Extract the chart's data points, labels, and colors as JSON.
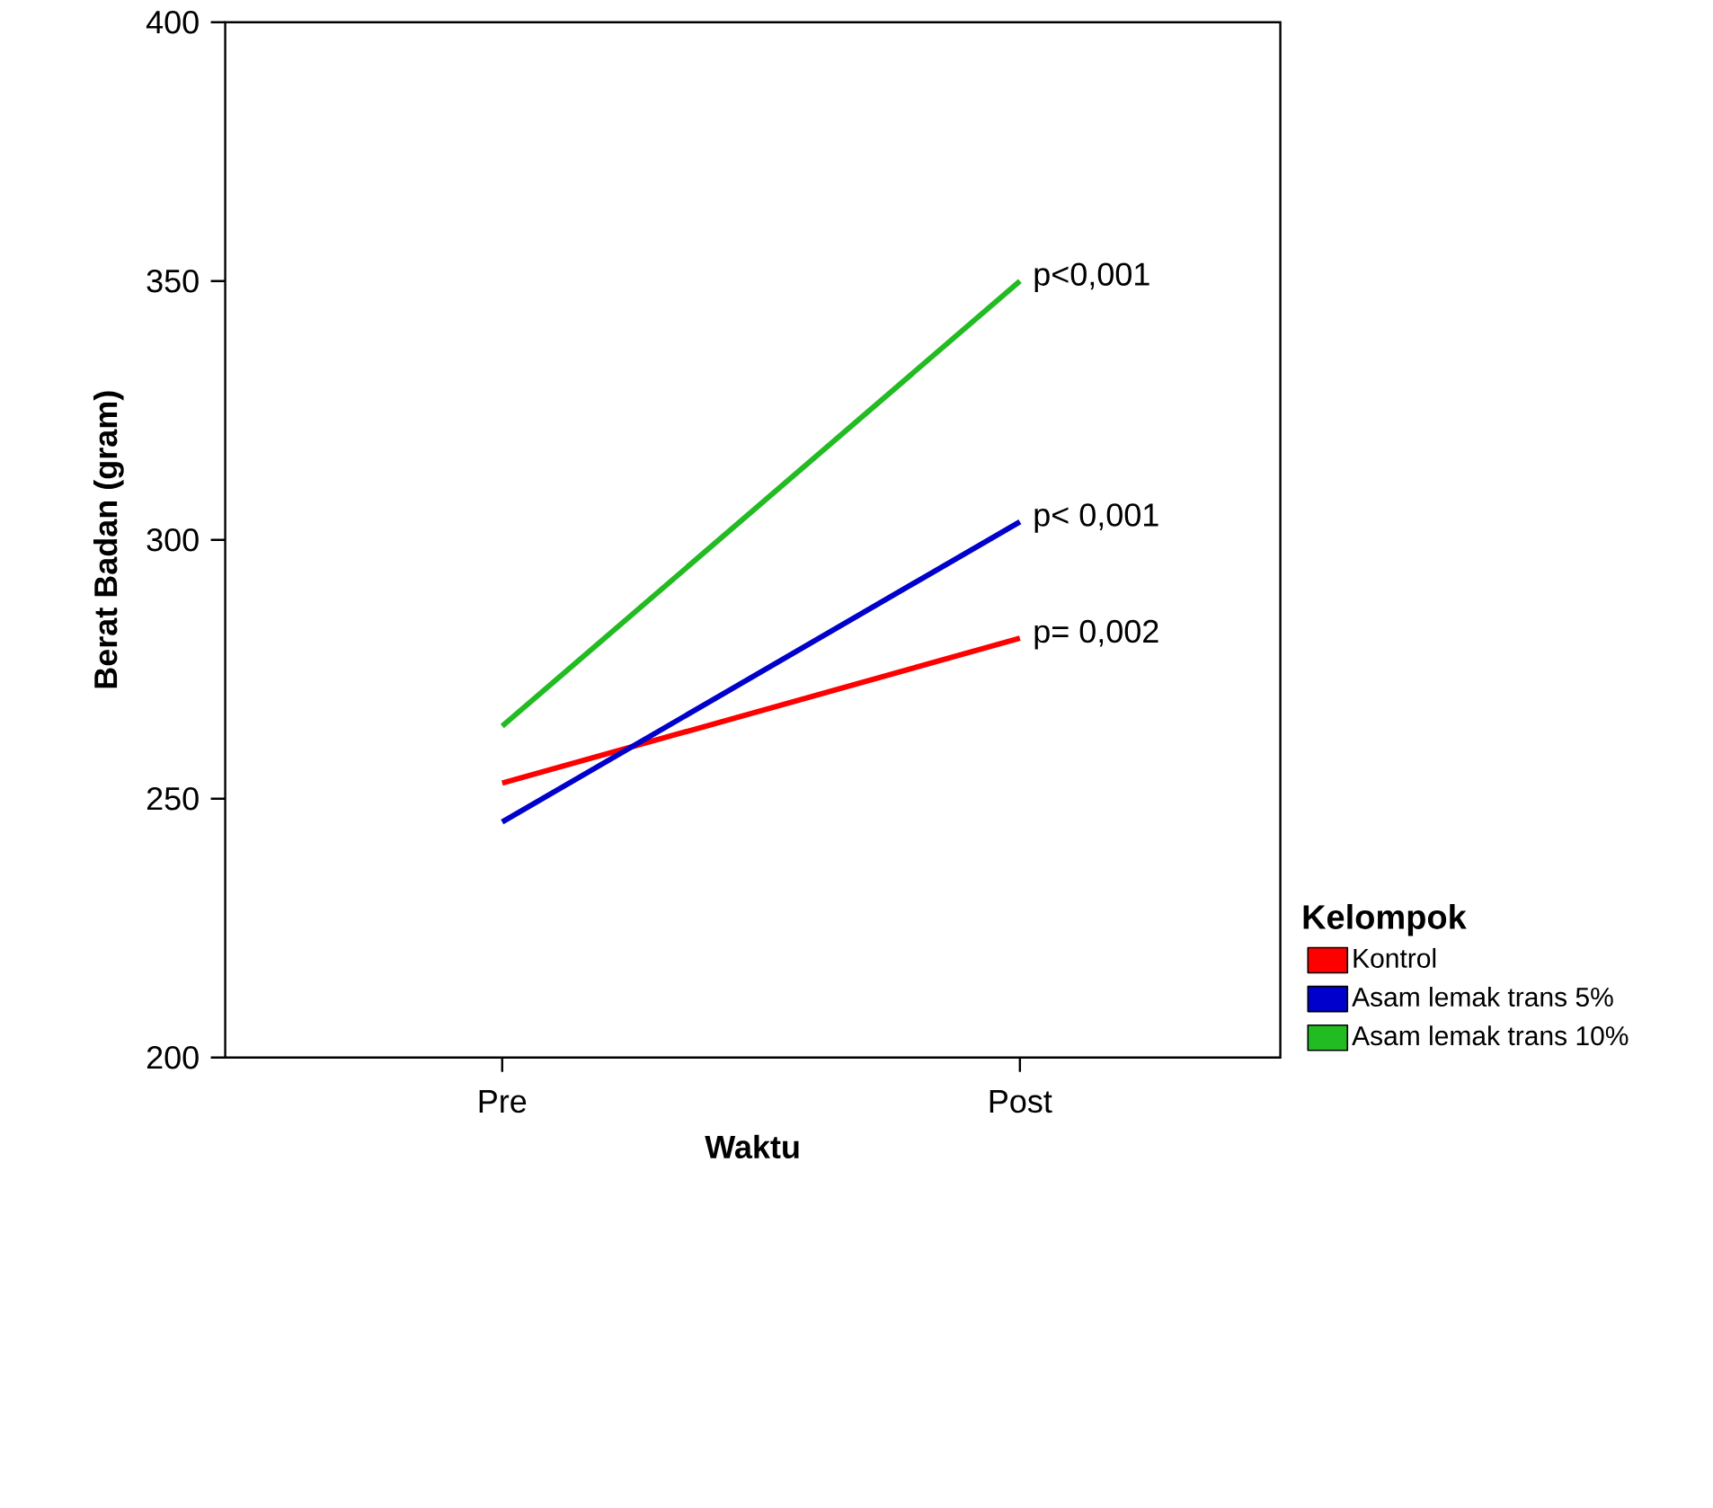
{
  "chart_data": {
    "type": "line",
    "xlabel": "Waktu",
    "ylabel": "Berat Badan (gram)",
    "legend_title": "Kelompok",
    "categories": [
      "Pre",
      "Post"
    ],
    "series": [
      {
        "name": "Kontrol",
        "color": "#ff0000",
        "values": [
          253,
          281
        ]
      },
      {
        "name": "Asam lemak trans 5%",
        "color": "#0000cc",
        "values": [
          245.5,
          303.5
        ]
      },
      {
        "name": "Asam lemak trans 10%",
        "color": "#22bb22",
        "values": [
          264,
          350
        ]
      }
    ],
    "ylim": [
      200,
      400
    ],
    "yticks": [
      200,
      250,
      300,
      350,
      400
    ],
    "legend": "bottom right",
    "marker": "none",
    "line_style": "solid",
    "annotations": [
      {
        "text": "p<0,001",
        "x": "Post",
        "y": 350
      },
      {
        "text": "p< 0,001",
        "x": "Post",
        "y": 303.5
      },
      {
        "text": "p= 0,002",
        "x": "Post",
        "y": 281
      }
    ]
  }
}
